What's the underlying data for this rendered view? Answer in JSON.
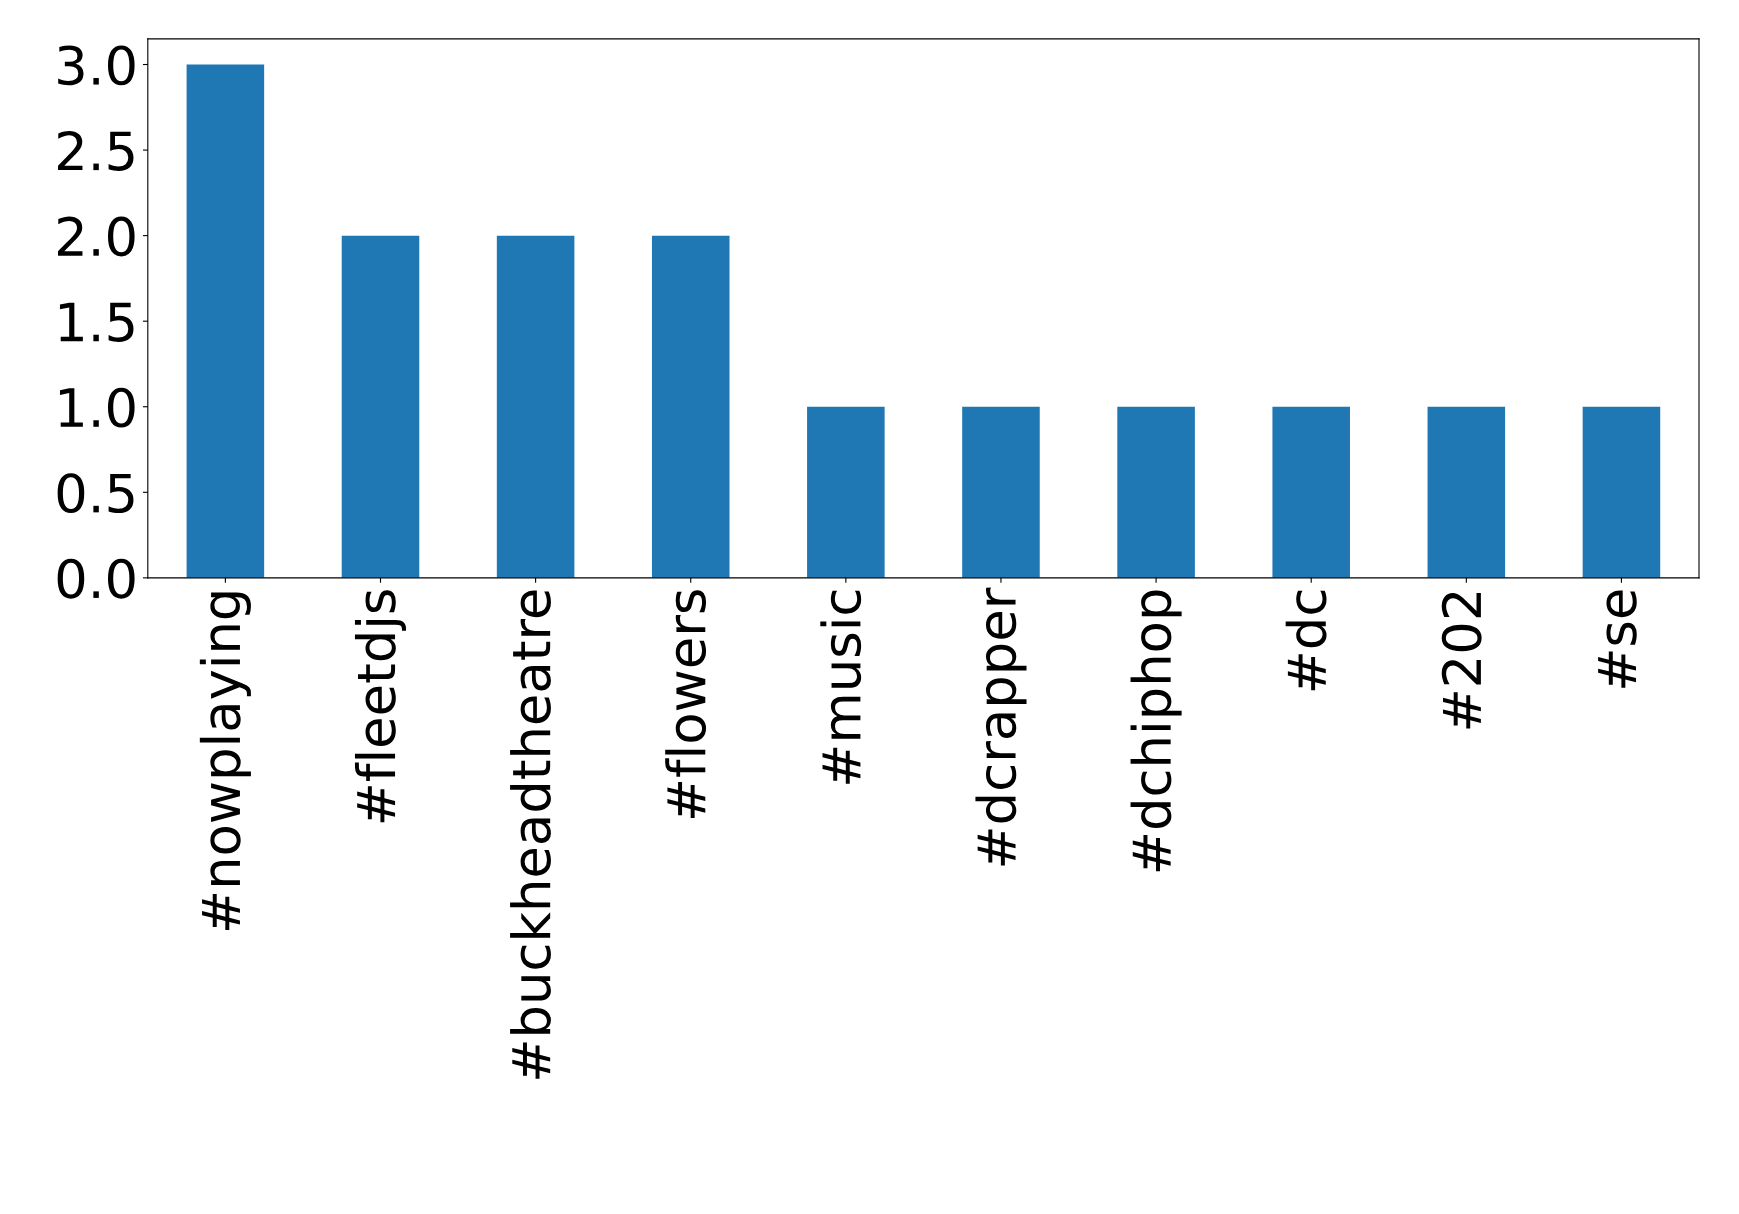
{
  "chart_data": {
    "type": "bar",
    "categories": [
      "#nowplaying",
      "#fleetdjs",
      "#buckheadtheatre",
      "#flowers",
      "#music",
      "#dcrapper",
      "#dchiphop",
      "#dc",
      "#202",
      "#se"
    ],
    "values": [
      3,
      2,
      2,
      2,
      1,
      1,
      1,
      1,
      1,
      1
    ],
    "color": "#1f77b4",
    "ylim": [
      0,
      3.15
    ],
    "yticks": [
      {
        "value": 0,
        "label": "0.0"
      },
      {
        "value": 0.5,
        "label": "0.5"
      },
      {
        "value": 1,
        "label": "1.0"
      },
      {
        "value": 1.5,
        "label": "1.5"
      },
      {
        "value": 2,
        "label": "2.0"
      },
      {
        "value": 2.5,
        "label": "2.5"
      },
      {
        "value": 3,
        "label": "3.0"
      }
    ],
    "grid": false,
    "legend": false
  }
}
